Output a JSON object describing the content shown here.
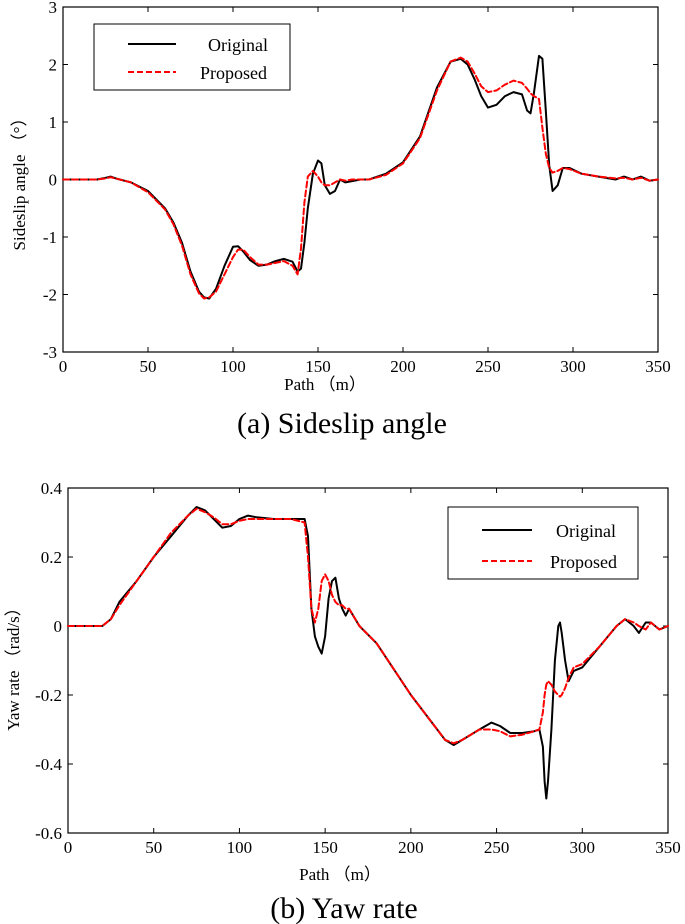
{
  "chart_data": [
    {
      "type": "line",
      "caption": "(a) Sideslip angle",
      "xlabel": "Path （m）",
      "ylabel": "Sideslip angle （°）",
      "xlim": [
        0,
        350
      ],
      "ylim": [
        -3,
        3
      ],
      "xticks": [
        0,
        50,
        100,
        150,
        200,
        250,
        300,
        350
      ],
      "xtick_labels": [
        "0",
        "50",
        "100",
        "150",
        "200",
        "250",
        "300",
        "350"
      ],
      "yticks": [
        -3,
        -2,
        -1,
        0,
        1,
        2,
        3
      ],
      "ytick_labels": [
        "-3",
        "-2",
        "-1",
        "0",
        "1",
        "2",
        "3"
      ],
      "grid": false,
      "legend_position": "top-left",
      "series": [
        {
          "name": "Original",
          "color": "#000000",
          "dash": "solid",
          "x": [
            0,
            20,
            25,
            28,
            32,
            40,
            50,
            60,
            65,
            70,
            75,
            80,
            83,
            86,
            90,
            95,
            100,
            103,
            106,
            110,
            115,
            120,
            125,
            130,
            135,
            138,
            140,
            142,
            144,
            147,
            150,
            152,
            154,
            157,
            160,
            163,
            166,
            170,
            175,
            180,
            190,
            200,
            210,
            220,
            228,
            234,
            238,
            242,
            246,
            250,
            255,
            260,
            265,
            270,
            273,
            275,
            277,
            280,
            282,
            284,
            286,
            288,
            291,
            294,
            298,
            305,
            315,
            325,
            330,
            335,
            340,
            345,
            350
          ],
          "y": [
            0,
            0,
            0.03,
            0.05,
            0.01,
            -0.05,
            -0.2,
            -0.5,
            -0.75,
            -1.1,
            -1.6,
            -1.95,
            -2.05,
            -2.07,
            -1.9,
            -1.5,
            -1.17,
            -1.16,
            -1.25,
            -1.4,
            -1.5,
            -1.48,
            -1.42,
            -1.38,
            -1.43,
            -1.6,
            -1.55,
            -1.1,
            -0.5,
            0.1,
            0.33,
            0.28,
            -0.1,
            -0.25,
            -0.2,
            0.0,
            -0.05,
            -0.03,
            0.0,
            0.0,
            0.1,
            0.3,
            0.75,
            1.6,
            2.05,
            2.1,
            2.0,
            1.75,
            1.45,
            1.25,
            1.3,
            1.45,
            1.52,
            1.48,
            1.2,
            1.15,
            1.5,
            2.15,
            2.1,
            1.2,
            0.25,
            -0.2,
            -0.1,
            0.2,
            0.2,
            0.1,
            0.05,
            0.0,
            0.05,
            0.0,
            0.05,
            -0.02,
            0.0
          ]
        },
        {
          "name": "Proposed",
          "color": "#ff0000",
          "dash": "dashed",
          "x": [
            0,
            20,
            25,
            28,
            32,
            40,
            50,
            60,
            65,
            70,
            75,
            80,
            83,
            86,
            90,
            95,
            100,
            103,
            106,
            110,
            115,
            120,
            125,
            130,
            135,
            138,
            140,
            142,
            144,
            147,
            150,
            152,
            154,
            157,
            160,
            163,
            166,
            170,
            175,
            180,
            190,
            200,
            210,
            220,
            228,
            234,
            238,
            242,
            246,
            250,
            255,
            260,
            265,
            270,
            273,
            275,
            277,
            280,
            282,
            284,
            286,
            288,
            291,
            294,
            298,
            305,
            315,
            325,
            330,
            335,
            340,
            345,
            350
          ],
          "y": [
            0,
            0,
            0.02,
            0.04,
            0.01,
            -0.05,
            -0.22,
            -0.52,
            -0.78,
            -1.15,
            -1.65,
            -1.98,
            -2.07,
            -2.05,
            -1.95,
            -1.65,
            -1.35,
            -1.22,
            -1.22,
            -1.35,
            -1.48,
            -1.48,
            -1.45,
            -1.42,
            -1.5,
            -1.65,
            -1.2,
            -0.4,
            0.05,
            0.15,
            0.05,
            -0.05,
            -0.1,
            -0.1,
            -0.05,
            0.0,
            -0.02,
            0.0,
            0.0,
            0.0,
            0.08,
            0.28,
            0.72,
            1.55,
            2.05,
            2.12,
            2.05,
            1.85,
            1.62,
            1.52,
            1.55,
            1.65,
            1.72,
            1.68,
            1.58,
            1.5,
            1.45,
            1.4,
            0.9,
            0.45,
            0.2,
            0.12,
            0.15,
            0.2,
            0.18,
            0.1,
            0.05,
            0.02,
            0.03,
            0.0,
            0.03,
            -0.02,
            0.0
          ]
        }
      ]
    },
    {
      "type": "line",
      "caption": "(b) Yaw rate",
      "xlabel": "Path （m）",
      "ylabel": "Yaw rate （rad/s）",
      "xlim": [
        0,
        350
      ],
      "ylim": [
        -0.6,
        0.4
      ],
      "xticks": [
        0,
        50,
        100,
        150,
        200,
        250,
        300,
        350
      ],
      "xtick_labels": [
        "0",
        "50",
        "100",
        "150",
        "200",
        "250",
        "300",
        "350"
      ],
      "yticks": [
        -0.6,
        -0.4,
        -0.2,
        0,
        0.2,
        0.4
      ],
      "ytick_labels": [
        "-0.6",
        "-0.4",
        "-0.2",
        "0",
        "0.2",
        "0.4"
      ],
      "grid": false,
      "legend_position": "top-right",
      "series": [
        {
          "name": "Original",
          "color": "#000000",
          "dash": "solid",
          "x": [
            0,
            10,
            15,
            20,
            25,
            30,
            40,
            50,
            60,
            70,
            75,
            80,
            85,
            90,
            95,
            100,
            105,
            110,
            120,
            130,
            138,
            140,
            142,
            144,
            146,
            148,
            150,
            152,
            154,
            156,
            158,
            160,
            162,
            164,
            170,
            180,
            200,
            220,
            225,
            230,
            240,
            247,
            252,
            258,
            265,
            272,
            275,
            277,
            278,
            279,
            280,
            282,
            284,
            286,
            287,
            288,
            290,
            292,
            295,
            300,
            310,
            320,
            325,
            330,
            333,
            337,
            340,
            345,
            350
          ],
          "y": [
            0,
            0,
            0,
            0,
            0.02,
            0.07,
            0.13,
            0.2,
            0.26,
            0.32,
            0.345,
            0.335,
            0.31,
            0.285,
            0.29,
            0.31,
            0.32,
            0.315,
            0.31,
            0.31,
            0.31,
            0.26,
            0.05,
            -0.03,
            -0.06,
            -0.08,
            -0.03,
            0.08,
            0.13,
            0.14,
            0.08,
            0.05,
            0.03,
            0.05,
            0.0,
            -0.05,
            -0.2,
            -0.33,
            -0.345,
            -0.33,
            -0.3,
            -0.28,
            -0.29,
            -0.31,
            -0.31,
            -0.305,
            -0.3,
            -0.35,
            -0.45,
            -0.5,
            -0.45,
            -0.3,
            -0.1,
            0.0,
            0.01,
            -0.02,
            -0.1,
            -0.16,
            -0.13,
            -0.12,
            -0.06,
            0.0,
            0.02,
            0.0,
            -0.02,
            0.01,
            0.01,
            -0.01,
            0.0
          ]
        },
        {
          "name": "Proposed",
          "color": "#ff0000",
          "dash": "dashed",
          "x": [
            0,
            10,
            15,
            20,
            25,
            30,
            40,
            50,
            60,
            70,
            75,
            80,
            85,
            90,
            95,
            100,
            105,
            110,
            120,
            130,
            138,
            140,
            142,
            144,
            146,
            148,
            150,
            152,
            154,
            156,
            158,
            160,
            162,
            164,
            170,
            180,
            200,
            220,
            225,
            230,
            240,
            247,
            252,
            258,
            265,
            272,
            275,
            277,
            278,
            279,
            280,
            282,
            284,
            286,
            287,
            288,
            290,
            292,
            295,
            300,
            310,
            320,
            325,
            330,
            333,
            337,
            340,
            345,
            350
          ],
          "y": [
            0,
            0,
            0,
            0,
            0.02,
            0.06,
            0.13,
            0.2,
            0.27,
            0.32,
            0.34,
            0.33,
            0.315,
            0.295,
            0.295,
            0.305,
            0.31,
            0.31,
            0.31,
            0.31,
            0.3,
            0.2,
            0.05,
            0.01,
            0.05,
            0.13,
            0.15,
            0.13,
            0.09,
            0.07,
            0.06,
            0.06,
            0.05,
            0.05,
            0.0,
            -0.05,
            -0.2,
            -0.33,
            -0.34,
            -0.33,
            -0.3,
            -0.3,
            -0.305,
            -0.32,
            -0.315,
            -0.305,
            -0.3,
            -0.25,
            -0.2,
            -0.17,
            -0.16,
            -0.17,
            -0.19,
            -0.2,
            -0.205,
            -0.2,
            -0.18,
            -0.15,
            -0.12,
            -0.11,
            -0.06,
            0.0,
            0.02,
            0.01,
            0.0,
            -0.01,
            0.01,
            -0.01,
            0.0
          ]
        }
      ]
    }
  ]
}
